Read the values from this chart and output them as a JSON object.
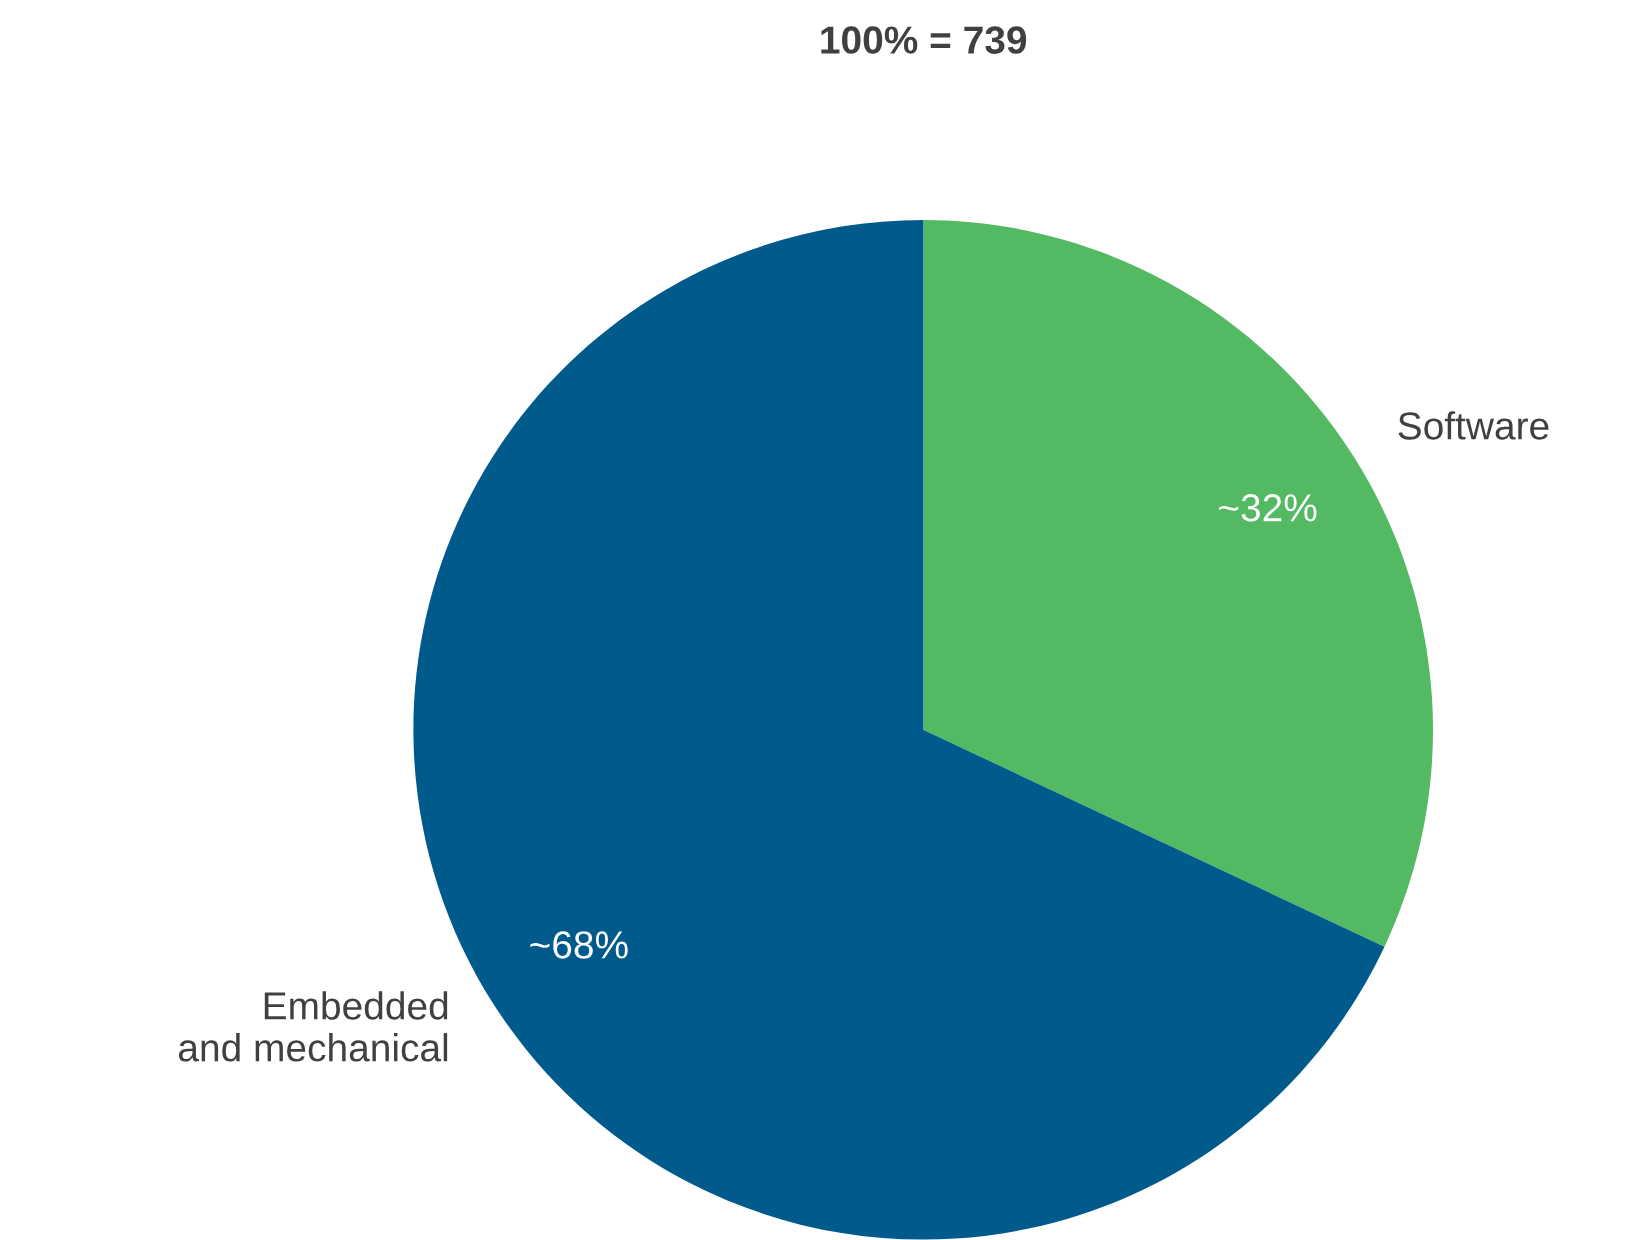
{
  "chart_data": {
    "type": "pie",
    "title": "100% = 739",
    "categories": [
      "Software",
      "Embedded\nand mechanical"
    ],
    "values": [
      32,
      68
    ],
    "value_labels": [
      "~32%",
      "~68%"
    ],
    "colors": [
      "#54b963",
      "#005a8b"
    ]
  }
}
